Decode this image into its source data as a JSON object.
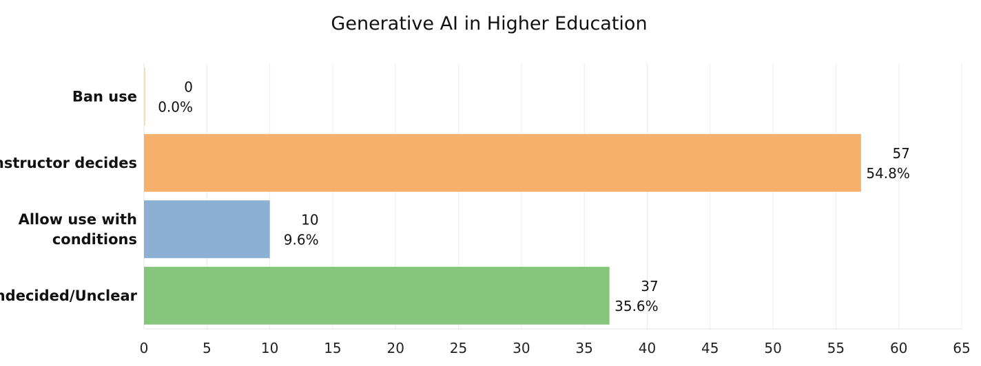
{
  "chart_data": {
    "type": "bar",
    "orientation": "horizontal",
    "title": "Generative AI in Higher Education",
    "xlabel": "",
    "ylabel": "",
    "xlim": [
      0,
      65
    ],
    "x_ticks": [
      0,
      5,
      10,
      15,
      20,
      25,
      30,
      35,
      40,
      45,
      50,
      55,
      60,
      65
    ],
    "x_tick_labels": [
      "0",
      "5",
      "10",
      "15",
      "20",
      "25",
      "30",
      "35",
      "40",
      "45",
      "50",
      "55",
      "60",
      "65"
    ],
    "grid": "vertical",
    "categories": [
      {
        "label_lines": [
          "Ban use"
        ],
        "value": 0,
        "value_label": "0",
        "percent_label": "0.0%",
        "color": "#F5E1B5"
      },
      {
        "label_lines": [
          "Instructor decides"
        ],
        "value": 57,
        "value_label": "57",
        "percent_label": "54.8%",
        "color": "#F7B16C"
      },
      {
        "label_lines": [
          "Allow use with",
          "conditions"
        ],
        "value": 10,
        "value_label": "10",
        "percent_label": "9.6%",
        "color": "#8CB0D4"
      },
      {
        "label_lines": [
          "Undecided/Unclear"
        ],
        "value": 37,
        "value_label": "37",
        "percent_label": "35.6%",
        "color": "#86C57C"
      }
    ]
  }
}
